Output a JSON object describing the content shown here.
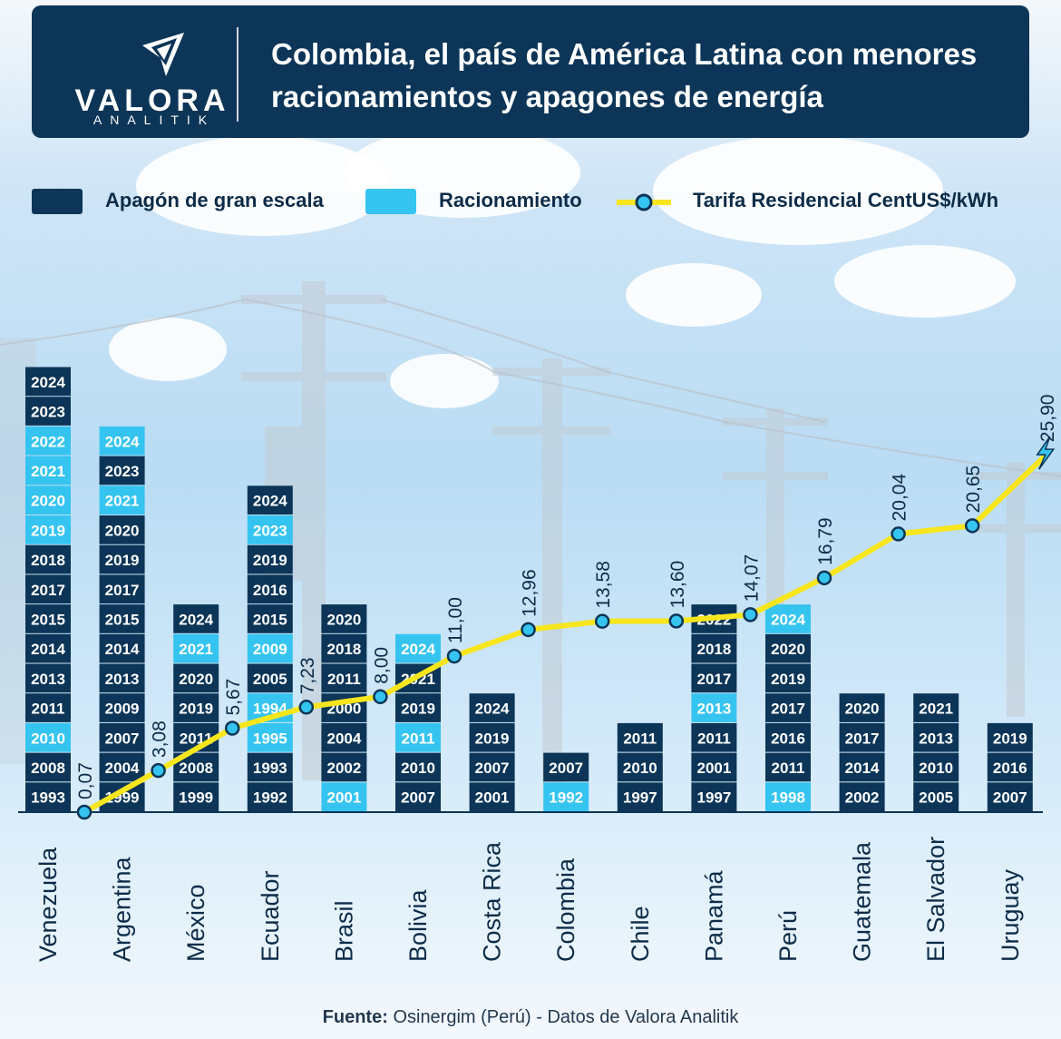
{
  "header": {
    "brand": "VALORA",
    "brand_sub": "ANALITIK",
    "title_line1": "Colombia, el país de América Latina con menores",
    "title_line2": "racionamientos y apagones de energía"
  },
  "legend": {
    "items": [
      {
        "label": "Apagón de gran escala",
        "color": "#0c3557"
      },
      {
        "label": "Racionamiento",
        "color": "#35c4f0"
      },
      {
        "label": "Tarifa Residencial CentUS$/kWh",
        "color": "#f7e61d"
      }
    ]
  },
  "footer": {
    "source_label": "Fuente:",
    "source_text": "Osinergim (Perú) - Datos de Valora Analitik"
  },
  "chart_data": {
    "type": "bar+line",
    "series_colors": {
      "apagon": "#0c3557",
      "racionamiento": "#35c4f0",
      "tarifa": "#f7e61d"
    },
    "categories": [
      "Venezuela",
      "Argentina",
      "México",
      "Ecuador",
      "Brasil",
      "Bolivia",
      "Costa Rica",
      "Colombia",
      "Chile",
      "Panamá",
      "Perú",
      "Guatemala",
      "El Salvador",
      "Uruguay"
    ],
    "events": [
      [
        {
          "y": "1993",
          "k": "a"
        },
        {
          "y": "2008",
          "k": "a"
        },
        {
          "y": "2010",
          "k": "r"
        },
        {
          "y": "2011",
          "k": "a"
        },
        {
          "y": "2013",
          "k": "a"
        },
        {
          "y": "2014",
          "k": "a"
        },
        {
          "y": "2015",
          "k": "a"
        },
        {
          "y": "2017",
          "k": "a"
        },
        {
          "y": "2018",
          "k": "a"
        },
        {
          "y": "2019",
          "k": "r"
        },
        {
          "y": "2020",
          "k": "r"
        },
        {
          "y": "2021",
          "k": "r"
        },
        {
          "y": "2022",
          "k": "r"
        },
        {
          "y": "2023",
          "k": "a"
        },
        {
          "y": "2024",
          "k": "a"
        }
      ],
      [
        {
          "y": "1999",
          "k": "a"
        },
        {
          "y": "2004",
          "k": "a"
        },
        {
          "y": "2007",
          "k": "a"
        },
        {
          "y": "2009",
          "k": "a"
        },
        {
          "y": "2013",
          "k": "a"
        },
        {
          "y": "2014",
          "k": "a"
        },
        {
          "y": "2015",
          "k": "a"
        },
        {
          "y": "2017",
          "k": "a"
        },
        {
          "y": "2019",
          "k": "a"
        },
        {
          "y": "2020",
          "k": "a"
        },
        {
          "y": "2021",
          "k": "r"
        },
        {
          "y": "2023",
          "k": "a"
        },
        {
          "y": "2024",
          "k": "r"
        }
      ],
      [
        {
          "y": "1999",
          "k": "a"
        },
        {
          "y": "2008",
          "k": "a"
        },
        {
          "y": "2011",
          "k": "a"
        },
        {
          "y": "2019",
          "k": "a"
        },
        {
          "y": "2020",
          "k": "a"
        },
        {
          "y": "2021",
          "k": "r"
        },
        {
          "y": "2024",
          "k": "a"
        }
      ],
      [
        {
          "y": "1992",
          "k": "a"
        },
        {
          "y": "1993",
          "k": "a"
        },
        {
          "y": "1995",
          "k": "r"
        },
        {
          "y": "1994",
          "k": "r"
        },
        {
          "y": "2005",
          "k": "a"
        },
        {
          "y": "2009",
          "k": "r"
        },
        {
          "y": "2015",
          "k": "a"
        },
        {
          "y": "2016",
          "k": "a"
        },
        {
          "y": "2019",
          "k": "a"
        },
        {
          "y": "2023",
          "k": "r"
        },
        {
          "y": "2024",
          "k": "a"
        }
      ],
      [
        {
          "y": "2001",
          "k": "r"
        },
        {
          "y": "2002",
          "k": "a"
        },
        {
          "y": "2004",
          "k": "a"
        },
        {
          "y": "2000",
          "k": "a"
        },
        {
          "y": "2011",
          "k": "a"
        },
        {
          "y": "2018",
          "k": "a"
        },
        {
          "y": "2020",
          "k": "a"
        }
      ],
      [
        {
          "y": "2007",
          "k": "a"
        },
        {
          "y": "2010",
          "k": "a"
        },
        {
          "y": "2011",
          "k": "r"
        },
        {
          "y": "2019",
          "k": "a"
        },
        {
          "y": "2021",
          "k": "a"
        },
        {
          "y": "2024",
          "k": "r"
        }
      ],
      [
        {
          "y": "2001",
          "k": "a"
        },
        {
          "y": "2007",
          "k": "a"
        },
        {
          "y": "2019",
          "k": "a"
        },
        {
          "y": "2024",
          "k": "a"
        }
      ],
      [
        {
          "y": "1992",
          "k": "r"
        },
        {
          "y": "2007",
          "k": "a"
        }
      ],
      [
        {
          "y": "1997",
          "k": "a"
        },
        {
          "y": "2010",
          "k": "a"
        },
        {
          "y": "2011",
          "k": "a"
        }
      ],
      [
        {
          "y": "1997",
          "k": "a"
        },
        {
          "y": "2001",
          "k": "a"
        },
        {
          "y": "2011",
          "k": "a"
        },
        {
          "y": "2013",
          "k": "r"
        },
        {
          "y": "2017",
          "k": "a"
        },
        {
          "y": "2018",
          "k": "a"
        },
        {
          "y": "2022",
          "k": "a"
        }
      ],
      [
        {
          "y": "1998",
          "k": "r"
        },
        {
          "y": "2011",
          "k": "a"
        },
        {
          "y": "2016",
          "k": "a"
        },
        {
          "y": "2017",
          "k": "a"
        },
        {
          "y": "2019",
          "k": "a"
        },
        {
          "y": "2020",
          "k": "a"
        },
        {
          "y": "2024",
          "k": "r"
        }
      ],
      [
        {
          "y": "2002",
          "k": "a"
        },
        {
          "y": "2014",
          "k": "a"
        },
        {
          "y": "2017",
          "k": "a"
        },
        {
          "y": "2020",
          "k": "a"
        }
      ],
      [
        {
          "y": "2005",
          "k": "a"
        },
        {
          "y": "2010",
          "k": "a"
        },
        {
          "y": "2013",
          "k": "a"
        },
        {
          "y": "2021",
          "k": "a"
        }
      ],
      [
        {
          "y": "2007",
          "k": "a"
        },
        {
          "y": "2016",
          "k": "a"
        },
        {
          "y": "2019",
          "k": "a"
        }
      ]
    ],
    "tariff_labels": [
      "0,07",
      "3,08",
      "5,67",
      "7,23",
      "8,00",
      "11,00",
      "12,96",
      "13,58",
      "13,60",
      "14,07",
      "16,79",
      "20,04",
      "20,65",
      "25,90"
    ],
    "tariff_values": [
      0.07,
      3.08,
      5.67,
      7.23,
      8.0,
      11.0,
      12.96,
      13.58,
      13.6,
      14.07,
      16.79,
      20.04,
      20.65,
      25.9
    ]
  }
}
